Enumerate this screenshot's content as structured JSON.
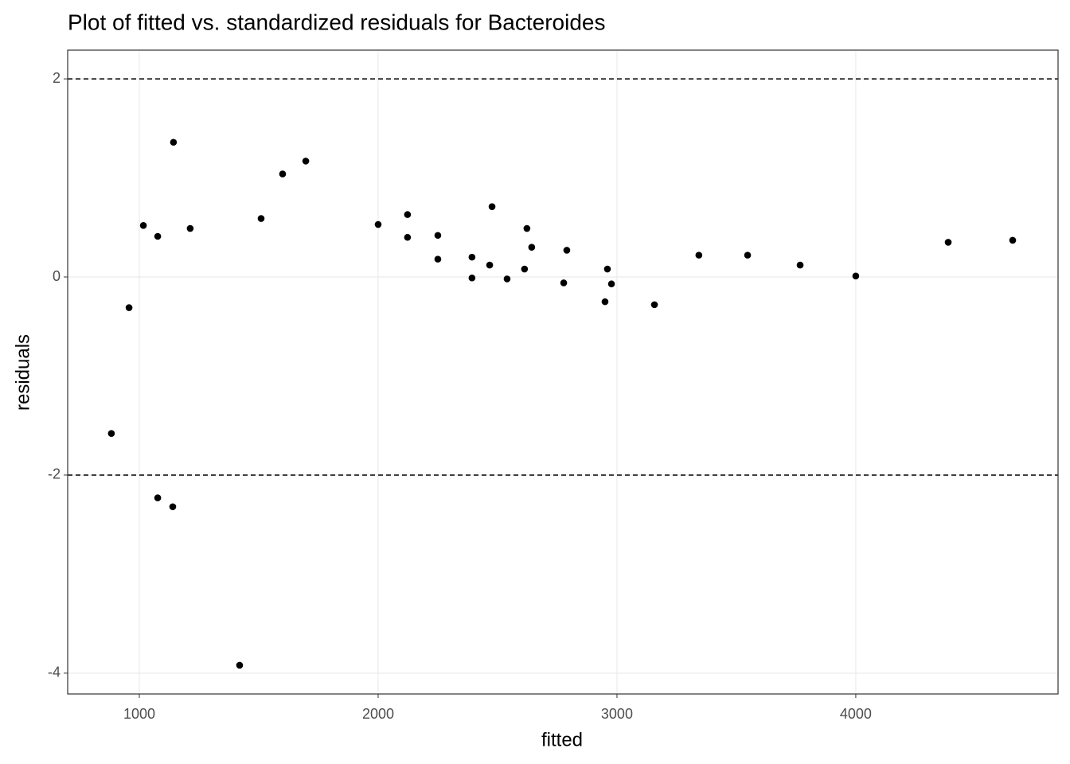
{
  "chart_data": {
    "type": "scatter",
    "title": "Plot of fitted vs. standardized residuals for Bacteroides",
    "x_label": "fitted",
    "y_label": "residuals",
    "x": [
      883,
      957,
      1017,
      1077,
      1077,
      1140,
      1143,
      1213,
      1420,
      1510,
      1600,
      1697,
      2000,
      2123,
      2123,
      2250,
      2250,
      2393,
      2393,
      2467,
      2477,
      2540,
      2613,
      2623,
      2643,
      2777,
      2790,
      2950,
      2960,
      2977,
      3157,
      3343,
      3547,
      3767,
      4000,
      4387,
      4657
    ],
    "values": [
      -1.58,
      -0.31,
      0.52,
      0.41,
      -2.23,
      -2.32,
      1.36,
      0.49,
      -3.92,
      0.59,
      1.04,
      1.17,
      0.53,
      0.63,
      0.4,
      0.42,
      0.18,
      0.2,
      -0.01,
      0.12,
      0.71,
      -0.02,
      0.08,
      0.49,
      0.3,
      -0.06,
      0.27,
      -0.25,
      0.08,
      -0.07,
      -0.28,
      0.22,
      0.22,
      0.12,
      0.01,
      0.35,
      0.37
    ],
    "color": "#000000",
    "xlim": [
      700,
      4847
    ],
    "xticks": [
      1000,
      2000,
      3000,
      4000
    ],
    "ylim": [
      -4.21,
      2.29
    ],
    "yticks": [
      -4,
      -2,
      0,
      2
    ],
    "hlines": [
      2,
      -2
    ],
    "grid": true
  }
}
